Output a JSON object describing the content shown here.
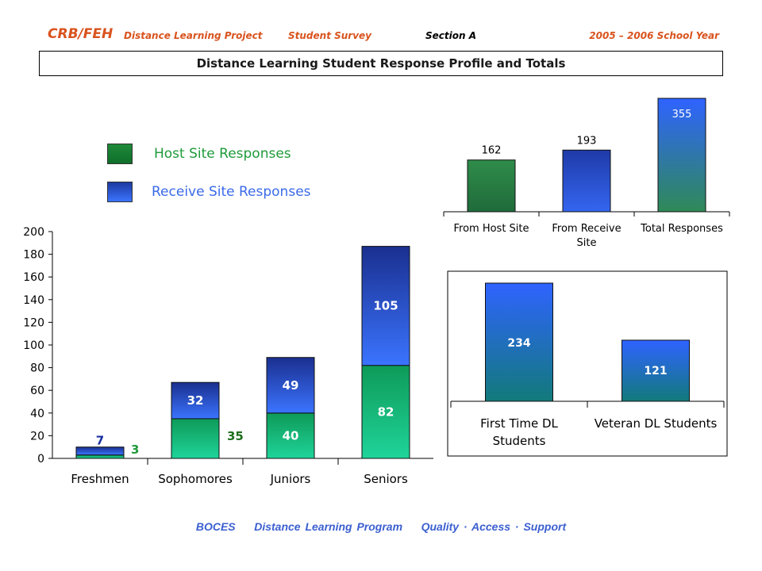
{
  "header": {
    "brand": "CRB/FEH",
    "project": "Distance Learning Project",
    "survey": "Student Survey",
    "section": "Section A",
    "year": "2005 – 2006 School Year"
  },
  "title": "Distance Learning Student Response Profile and Totals",
  "legend": {
    "host_label": "Host Site Responses",
    "receive_label": "Receive Site Responses"
  },
  "colors": {
    "header": "#d9531e",
    "host": "#2e8b3e",
    "receive": "#2f5fe8",
    "footer": "#3b5fd0"
  },
  "footer": {
    "left": "BOCES",
    "mid": "Distance Learning Program",
    "right": "Quality · Access · Support"
  },
  "chart_data": [
    {
      "type": "bar",
      "stacked": true,
      "categories": [
        "Freshmen",
        "Sophomores",
        "Juniors",
        "Seniors"
      ],
      "series": [
        {
          "name": "Host Site Responses",
          "values": [
            3,
            35,
            40,
            82
          ]
        },
        {
          "name": "Receive Site Responses",
          "values": [
            7,
            32,
            49,
            105
          ]
        }
      ],
      "ylim": [
        0,
        200
      ],
      "yticks": [
        0,
        20,
        40,
        60,
        80,
        100,
        120,
        140,
        160,
        180,
        200
      ]
    },
    {
      "type": "bar",
      "categories": [
        "From Host Site",
        "From Receive Site",
        "Total Responses"
      ],
      "values": [
        162,
        193,
        355
      ]
    },
    {
      "type": "bar",
      "categories": [
        "First Time DL Students",
        "Veteran DL Students"
      ],
      "values": [
        234,
        121
      ]
    }
  ]
}
